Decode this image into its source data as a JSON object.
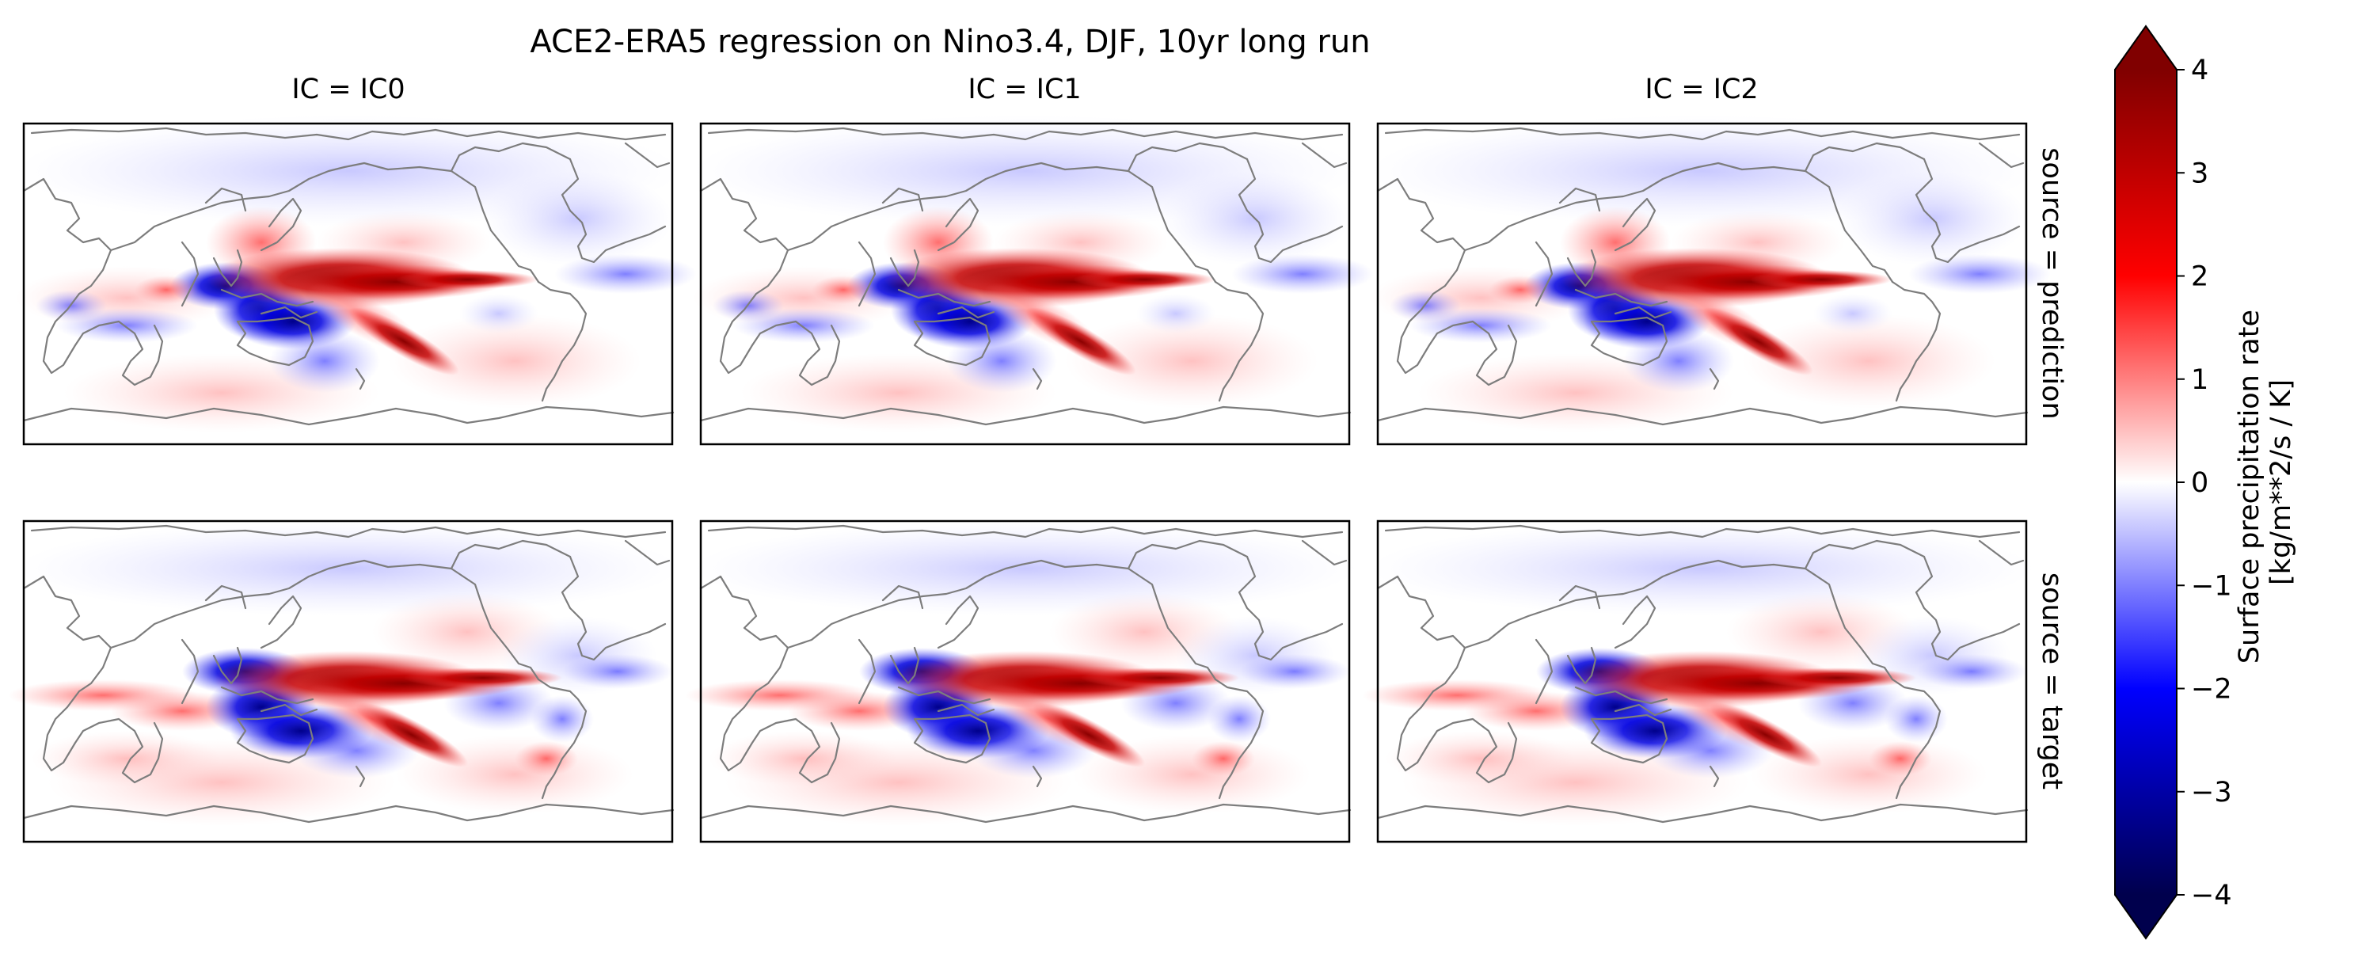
{
  "chart_data": {
    "type": "heatmap",
    "title": "ACE2-ERA5 regression on Nino3.4, DJF, 10yr long run",
    "columns": [
      {
        "label": "IC = IC0"
      },
      {
        "label": "IC = IC1"
      },
      {
        "label": "IC = IC2"
      }
    ],
    "rows": [
      {
        "label": "source = prediction"
      },
      {
        "label": "source = target"
      }
    ],
    "colorbar": {
      "label_line1": "Surface precipitation rate",
      "label_line2": "[kg/m**2/s / K]",
      "vmin": -4,
      "vmax": 4,
      "extend": "both",
      "cmap": "seismic",
      "ticks": [
        {
          "value": 4,
          "label": "4"
        },
        {
          "value": 3,
          "label": "3"
        },
        {
          "value": 2,
          "label": "2"
        },
        {
          "value": 1,
          "label": "1"
        },
        {
          "value": 0,
          "label": "0"
        },
        {
          "value": -1,
          "label": "−1"
        },
        {
          "value": -2,
          "label": "−2"
        },
        {
          "value": -3,
          "label": "−3"
        },
        {
          "value": -4,
          "label": "−4"
        }
      ]
    },
    "coastline_color": "#808080"
  }
}
